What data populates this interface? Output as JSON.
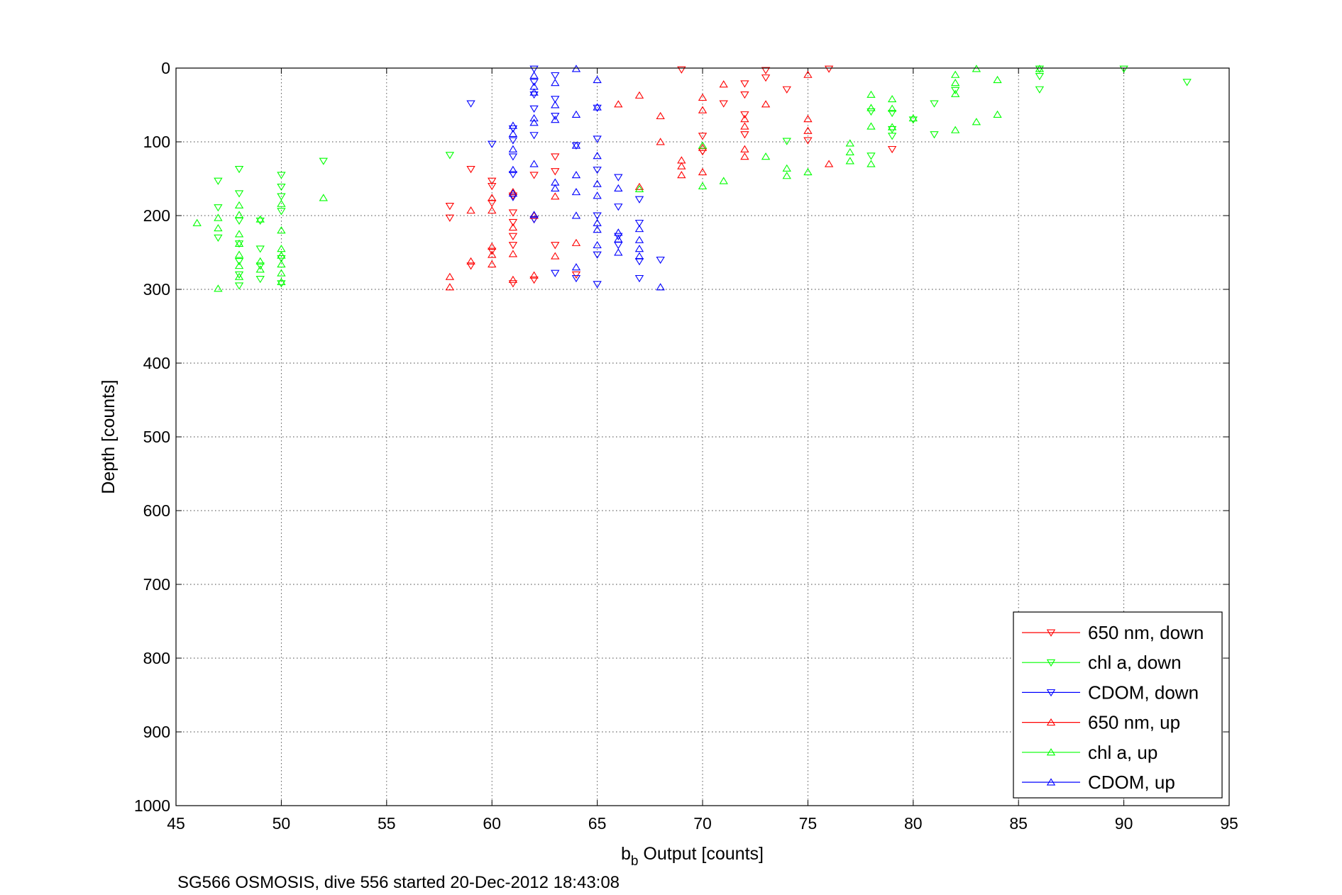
{
  "chart_data": {
    "type": "scatter",
    "xlabel": "b",
    "xlabel_subscript": "b",
    "xlabel_rest": " Output [counts]",
    "ylabel": "Depth [counts]",
    "caption": "SG566 OSMOSIS, dive 556 started 20-Dec-2012 18:43:08",
    "xlim": [
      45,
      95
    ],
    "ylim": [
      0,
      1000
    ],
    "y_reversed": true,
    "grid": true,
    "legend_position": "bottom-right",
    "xticks": [
      "45",
      "50",
      "55",
      "60",
      "65",
      "70",
      "75",
      "80",
      "85",
      "90",
      "95"
    ],
    "yticks": [
      "0",
      "100",
      "200",
      "300",
      "400",
      "500",
      "600",
      "700",
      "800",
      "900",
      "1000"
    ],
    "series": [
      {
        "name": "650 nm, down",
        "color": "#ff0000",
        "marker": "triangle-down",
        "x": [
          58,
          58,
          59,
          59,
          60,
          60,
          60,
          60,
          61,
          61,
          61,
          61,
          61,
          61,
          62,
          62,
          62,
          63,
          63,
          63,
          64,
          69,
          70,
          70,
          71,
          72,
          72,
          72,
          72,
          73,
          73,
          74,
          75,
          76,
          79
        ],
        "y": [
          187,
          203,
          137,
          268,
          153,
          183,
          248,
          160,
          196,
          209,
          228,
          240,
          173,
          292,
          145,
          205,
          287,
          120,
          240,
          140,
          280,
          2,
          92,
          113,
          48,
          36,
          21,
          90,
          63,
          13,
          3,
          29,
          98,
          1,
          110
        ]
      },
      {
        "name": "chl a, down",
        "color": "#00ff00",
        "marker": "triangle-down",
        "x": [
          47,
          47,
          47,
          48,
          48,
          48,
          48,
          48,
          48,
          48,
          49,
          49,
          49,
          49,
          50,
          50,
          50,
          50,
          50,
          50,
          52,
          58,
          74,
          78,
          78,
          79,
          79,
          79,
          80,
          81,
          81,
          82,
          86,
          86,
          86,
          90,
          93
        ],
        "y": [
          153,
          189,
          230,
          137,
          170,
          207,
          238,
          280,
          295,
          262,
          207,
          245,
          268,
          286,
          145,
          161,
          194,
          258,
          292,
          174,
          126,
          118,
          99,
          59,
          119,
          83,
          61,
          92,
          70,
          48,
          90,
          30,
          29,
          1,
          11,
          1,
          19
        ]
      },
      {
        "name": "CDOM, down",
        "color": "#0000ff",
        "marker": "triangle-down",
        "x": [
          59,
          60,
          61,
          61,
          61,
          61,
          61,
          62,
          62,
          62,
          62,
          62,
          62,
          63,
          63,
          63,
          63,
          64,
          64,
          65,
          65,
          65,
          65,
          65,
          65,
          66,
          66,
          66,
          66,
          67,
          67,
          67,
          67,
          68
        ],
        "y": [
          48,
          103,
          82,
          98,
          120,
          175,
          144,
          1,
          19,
          36,
          55,
          91,
          205,
          10,
          42,
          65,
          278,
          105,
          285,
          54,
          96,
          138,
          200,
          253,
          293,
          148,
          188,
          240,
          228,
          210,
          262,
          285,
          178,
          260
        ]
      },
      {
        "name": "650 nm, up",
        "color": "#ff0000",
        "marker": "triangle-up",
        "x": [
          58,
          58,
          59,
          59,
          60,
          60,
          60,
          60,
          60,
          61,
          61,
          61,
          61,
          62,
          62,
          63,
          63,
          64,
          66,
          67,
          67,
          68,
          68,
          69,
          69,
          69,
          70,
          70,
          70,
          70,
          71,
          72,
          72,
          72,
          72,
          73,
          75,
          75,
          75,
          76
        ],
        "y": [
          283,
          297,
          193,
          262,
          176,
          193,
          242,
          253,
          266,
          168,
          216,
          252,
          287,
          200,
          281,
          174,
          255,
          237,
          49,
          37,
          161,
          65,
          100,
          125,
          133,
          145,
          40,
          57,
          108,
          141,
          22,
          79,
          120,
          69,
          110,
          49,
          9,
          69,
          85,
          130
        ]
      },
      {
        "name": "chl a, up",
        "color": "#00ff00",
        "marker": "triangle-up",
        "x": [
          46,
          47,
          47,
          47,
          48,
          48,
          48,
          48,
          48,
          48,
          48,
          49,
          49,
          49,
          50,
          50,
          50,
          50,
          50,
          50,
          50,
          52,
          67,
          70,
          70,
          71,
          73,
          74,
          74,
          75,
          77,
          77,
          77,
          78,
          78,
          78,
          78,
          79,
          79,
          79,
          80,
          82,
          82,
          82,
          82,
          83,
          83,
          84,
          84,
          86
        ],
        "y": [
          210,
          203,
          217,
          299,
          186,
          199,
          225,
          238,
          253,
          268,
          283,
          205,
          262,
          273,
          184,
          220,
          245,
          254,
          266,
          278,
          290,
          176,
          164,
          105,
          160,
          153,
          120,
          136,
          146,
          141,
          102,
          114,
          126,
          36,
          54,
          79,
          130,
          42,
          55,
          80,
          68,
          9,
          20,
          35,
          84,
          1,
          73,
          16,
          63,
          1
        ]
      },
      {
        "name": "CDOM, up",
        "color": "#0000ff",
        "marker": "triangle-up",
        "x": [
          61,
          61,
          61,
          61,
          61,
          62,
          62,
          62,
          62,
          62,
          62,
          62,
          63,
          63,
          63,
          63,
          63,
          64,
          64,
          64,
          64,
          64,
          64,
          64,
          65,
          65,
          65,
          65,
          65,
          65,
          65,
          65,
          66,
          66,
          66,
          66,
          67,
          67,
          67,
          67,
          68
        ],
        "y": [
          78,
          89,
          110,
          138,
          170,
          10,
          25,
          33,
          68,
          74,
          130,
          199,
          20,
          50,
          70,
          155,
          163,
          1,
          63,
          105,
          145,
          168,
          200,
          270,
          16,
          53,
          119,
          157,
          173,
          210,
          219,
          240,
          163,
          223,
          232,
          250,
          233,
          245,
          255,
          218,
          297
        ]
      }
    ]
  }
}
